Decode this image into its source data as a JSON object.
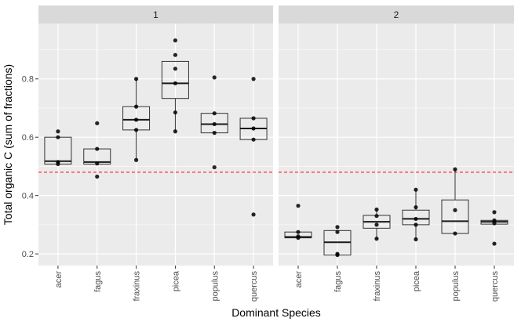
{
  "chart_data": {
    "type": "boxplot",
    "xlabel": "Dominant Species",
    "ylabel": "Total organic C (sum of fractions)",
    "categories": [
      "acer",
      "fagus",
      "fraxinus",
      "picea",
      "populus",
      "quercus"
    ],
    "ylim": [
      0.16,
      0.99
    ],
    "yticks": [
      0.2,
      0.4,
      0.6,
      0.8
    ],
    "ytick_labels": [
      "0.2",
      "0.4",
      "0.6",
      "0.8"
    ],
    "reference_line": {
      "y": 0.48,
      "color": "#ff0000",
      "style": "dashed"
    },
    "grid": true,
    "panels": [
      {
        "label": "1",
        "boxes": [
          {
            "category": "acer",
            "q1": 0.508,
            "median": 0.518,
            "q3": 0.6,
            "whisker_low": 0.508,
            "whisker_high": 0.6,
            "points": [
              0.62,
              0.6,
              0.515,
              0.508
            ]
          },
          {
            "category": "fagus",
            "q1": 0.508,
            "median": 0.515,
            "q3": 0.56,
            "whisker_low": 0.508,
            "whisker_high": 0.56,
            "points": [
              0.648,
              0.56,
              0.51,
              0.465
            ]
          },
          {
            "category": "fraxinus",
            "q1": 0.625,
            "median": 0.66,
            "q3": 0.705,
            "whisker_low": 0.522,
            "whisker_high": 0.8,
            "points": [
              0.8,
              0.705,
              0.66,
              0.625,
              0.522
            ]
          },
          {
            "category": "picea",
            "q1": 0.733,
            "median": 0.785,
            "q3": 0.86,
            "whisker_low": 0.62,
            "whisker_high": 0.86,
            "points": [
              0.932,
              0.882,
              0.835,
              0.785,
              0.685,
              0.62
            ]
          },
          {
            "category": "populus",
            "q1": 0.615,
            "median": 0.645,
            "q3": 0.682,
            "whisker_low": 0.615,
            "whisker_high": 0.682,
            "points": [
              0.805,
              0.682,
              0.645,
              0.615,
              0.497
            ]
          },
          {
            "category": "quercus",
            "q1": 0.592,
            "median": 0.63,
            "q3": 0.665,
            "whisker_low": 0.592,
            "whisker_high": 0.665,
            "points": [
              0.8,
              0.665,
              0.63,
              0.592,
              0.335
            ]
          }
        ]
      },
      {
        "label": "2",
        "boxes": [
          {
            "category": "acer",
            "q1": 0.255,
            "median": 0.258,
            "q3": 0.275,
            "whisker_low": 0.255,
            "whisker_high": 0.275,
            "points": [
              0.365,
              0.275,
              0.26,
              0.255
            ]
          },
          {
            "category": "fagus",
            "q1": 0.196,
            "median": 0.24,
            "q3": 0.28,
            "whisker_low": 0.196,
            "whisker_high": 0.28,
            "points": [
              0.292,
              0.275,
              0.2,
              0.196
            ]
          },
          {
            "category": "fraxinus",
            "q1": 0.288,
            "median": 0.31,
            "q3": 0.332,
            "whisker_low": 0.252,
            "whisker_high": 0.352,
            "points": [
              0.352,
              0.33,
              0.3,
              0.252
            ]
          },
          {
            "category": "picea",
            "q1": 0.3,
            "median": 0.32,
            "q3": 0.35,
            "whisker_low": 0.25,
            "whisker_high": 0.42,
            "points": [
              0.42,
              0.36,
              0.32,
              0.3,
              0.25
            ]
          },
          {
            "category": "populus",
            "q1": 0.27,
            "median": 0.312,
            "q3": 0.385,
            "whisker_low": 0.27,
            "whisker_high": 0.49,
            "points": [
              0.49,
              0.35,
              0.27
            ]
          },
          {
            "category": "quercus",
            "q1": 0.302,
            "median": 0.31,
            "q3": 0.315,
            "whisker_low": 0.302,
            "whisker_high": 0.315,
            "points": [
              0.343,
              0.315,
              0.305,
              0.235
            ]
          }
        ]
      }
    ]
  }
}
